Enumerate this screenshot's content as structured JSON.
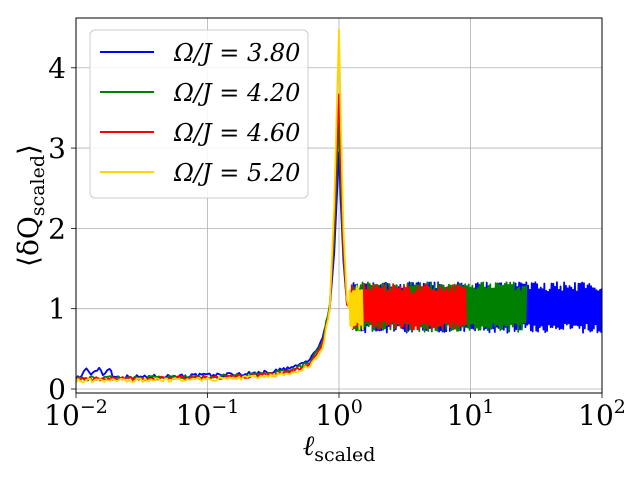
{
  "chart_data": {
    "type": "line",
    "xscale": "log",
    "xlim": [
      0.01,
      100
    ],
    "ylim": [
      -0.05,
      4.62
    ],
    "grid": true,
    "legend_placement": "top-left",
    "xlabel": {
      "main": "ℓ",
      "sub": "scaled"
    },
    "ylabel": {
      "open": "⟨δQ",
      "sub": "scaled",
      "close": "⟩"
    },
    "x_ticks": [
      {
        "value": 0.01,
        "base": "10",
        "exp": "−2"
      },
      {
        "value": 0.1,
        "base": "10",
        "exp": "−1"
      },
      {
        "value": 1,
        "base": "10",
        "exp": "0"
      },
      {
        "value": 10,
        "base": "10",
        "exp": "1"
      },
      {
        "value": 100,
        "base": "10",
        "exp": "2"
      }
    ],
    "y_ticks": [
      {
        "value": 0,
        "label": "0"
      },
      {
        "value": 1,
        "label": "1"
      },
      {
        "value": 2,
        "label": "2"
      },
      {
        "value": 3,
        "label": "3"
      },
      {
        "value": 4,
        "label": "4"
      }
    ],
    "series": [
      {
        "name": "Ω/J = 3.80",
        "color": "#0000ff",
        "points": [
          [
            0.01,
            0.14
          ],
          [
            0.011,
            0.16
          ],
          [
            0.012,
            0.27
          ],
          [
            0.013,
            0.16
          ],
          [
            0.015,
            0.27
          ],
          [
            0.016,
            0.18
          ],
          [
            0.018,
            0.27
          ],
          [
            0.019,
            0.16
          ],
          [
            0.02,
            0.15
          ],
          [
            0.03,
            0.15
          ],
          [
            0.05,
            0.16
          ],
          [
            0.1,
            0.17
          ],
          [
            0.2,
            0.19
          ],
          [
            0.3,
            0.21
          ],
          [
            0.45,
            0.27
          ],
          [
            0.6,
            0.36
          ],
          [
            0.75,
            0.62
          ],
          [
            0.85,
            1.0
          ],
          [
            0.92,
            1.7
          ],
          [
            0.97,
            2.5
          ],
          [
            1.0,
            2.95
          ],
          [
            1.03,
            2.35
          ],
          [
            1.08,
            1.6
          ],
          [
            1.15,
            1.05
          ],
          [
            1.25,
            1.0
          ]
        ],
        "noise_band": {
          "x_start": 1.25,
          "x_end": 100,
          "low": 0.7,
          "high": 1.33
        }
      },
      {
        "name": "Ω/J = 4.20",
        "color": "#008000",
        "points": [
          [
            0.01,
            0.13
          ],
          [
            0.03,
            0.14
          ],
          [
            0.1,
            0.15
          ],
          [
            0.2,
            0.17
          ],
          [
            0.3,
            0.19
          ],
          [
            0.45,
            0.24
          ],
          [
            0.6,
            0.33
          ],
          [
            0.75,
            0.6
          ],
          [
            0.85,
            1.05
          ],
          [
            0.92,
            1.9
          ],
          [
            0.97,
            2.9
          ],
          [
            1.0,
            3.3
          ],
          [
            1.03,
            2.6
          ],
          [
            1.08,
            1.7
          ],
          [
            1.15,
            1.05
          ],
          [
            1.25,
            1.0
          ]
        ],
        "noise_band": {
          "x_start": 1.25,
          "x_end": 27,
          "low": 0.71,
          "high": 1.33
        }
      },
      {
        "name": "Ω/J = 4.60",
        "color": "#ff0000",
        "points": [
          [
            0.01,
            0.12
          ],
          [
            0.03,
            0.13
          ],
          [
            0.1,
            0.14
          ],
          [
            0.2,
            0.16
          ],
          [
            0.3,
            0.18
          ],
          [
            0.45,
            0.22
          ],
          [
            0.6,
            0.3
          ],
          [
            0.75,
            0.55
          ],
          [
            0.85,
            1.0
          ],
          [
            0.92,
            2.1
          ],
          [
            0.97,
            3.2
          ],
          [
            1.0,
            3.67
          ],
          [
            1.03,
            2.9
          ],
          [
            1.08,
            1.8
          ],
          [
            1.15,
            1.05
          ],
          [
            1.25,
            1.0
          ]
        ],
        "noise_band": {
          "x_start": 1.25,
          "x_end": 9.3,
          "low": 0.74,
          "high": 1.31
        }
      },
      {
        "name": "Ω/J = 5.20",
        "color": "#ffd700",
        "points": [
          [
            0.01,
            0.1
          ],
          [
            0.03,
            0.11
          ],
          [
            0.1,
            0.12
          ],
          [
            0.2,
            0.14
          ],
          [
            0.3,
            0.16
          ],
          [
            0.45,
            0.2
          ],
          [
            0.6,
            0.28
          ],
          [
            0.75,
            0.5
          ],
          [
            0.85,
            1.0
          ],
          [
            0.92,
            2.3
          ],
          [
            0.97,
            3.7
          ],
          [
            1.0,
            4.48
          ],
          [
            1.03,
            3.4
          ],
          [
            1.08,
            2.0
          ],
          [
            1.15,
            1.1
          ],
          [
            1.2,
            1.0
          ]
        ],
        "noise_band": {
          "x_start": 1.2,
          "x_end": 1.52,
          "low": 0.72,
          "high": 1.3
        }
      }
    ]
  }
}
